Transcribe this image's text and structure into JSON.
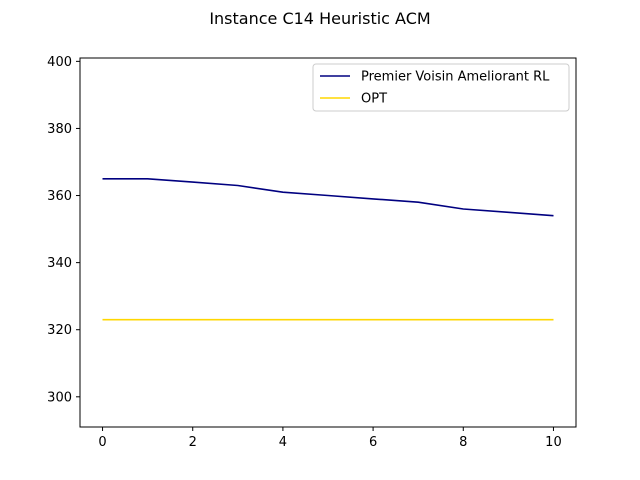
{
  "chart_data": {
    "type": "line",
    "title": "Instance C14 Heuristic ACM",
    "xlabel": "",
    "ylabel": "",
    "xlim": [
      -0.5,
      10.5
    ],
    "ylim": [
      291,
      401
    ],
    "xticks": [
      0,
      2,
      4,
      6,
      8,
      10
    ],
    "yticks": [
      300,
      320,
      340,
      360,
      380,
      400
    ],
    "grid": false,
    "legend_position": "top-right",
    "series": [
      {
        "name": "Premier Voisin Ameliorant RL",
        "color": "#000080",
        "x": [
          0,
          1,
          2,
          3,
          4,
          5,
          6,
          7,
          8,
          9,
          10
        ],
        "y": [
          365,
          365,
          364,
          363,
          361,
          360,
          359,
          358,
          356,
          355,
          354
        ]
      },
      {
        "name": "OPT",
        "color": "#FFD700",
        "x": [
          0,
          10
        ],
        "y": [
          323,
          323
        ]
      }
    ]
  }
}
